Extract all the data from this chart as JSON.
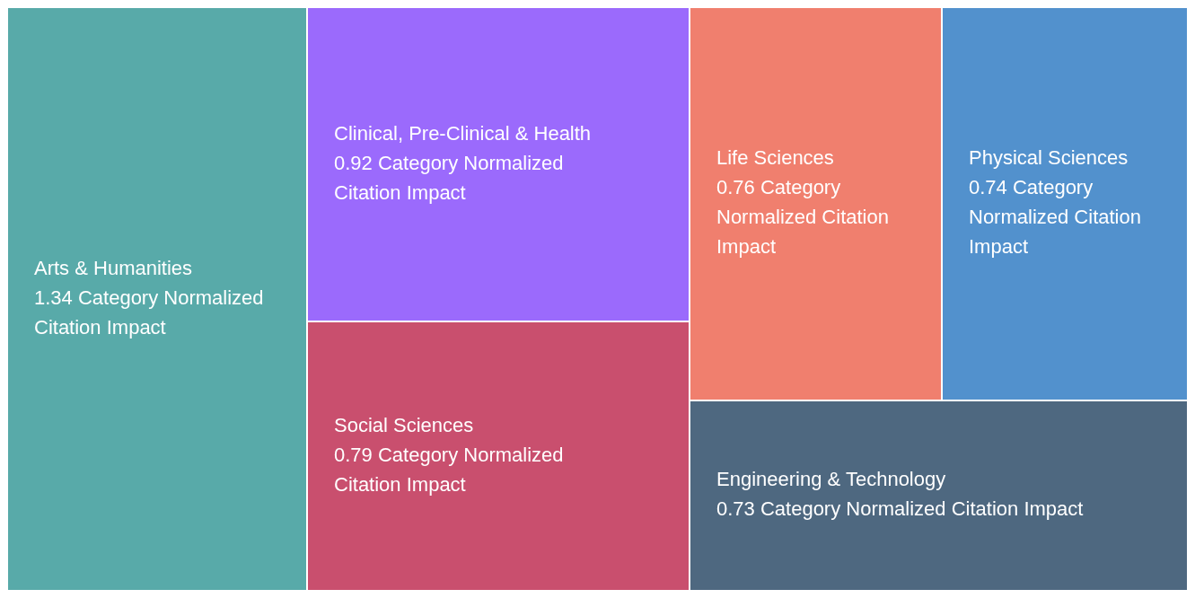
{
  "chart_data": {
    "type": "other",
    "categories": [
      "Arts & Humanities",
      "Clinical, Pre-Clinical & Health",
      "Social Sciences",
      "Life Sciences",
      "Physical Sciences",
      "Engineering & Technology"
    ],
    "values": [
      1.34,
      0.92,
      0.79,
      0.76,
      0.74,
      0.73
    ],
    "colors": [
      "#58aaa9",
      "#9b6afc",
      "#c94f6e",
      "#f07f6e",
      "#5291cd",
      "#4e6880"
    ],
    "value_labels": [
      "1.34 Category Normalized Citation Impact",
      "0.92 Category Normalized Citation Impact",
      "0.79 Category Normalized Citation Impact",
      "0.76 Category Normalized Citation Impact",
      "0.74 Category Normalized Citation Impact",
      "0.73 Category Normalized Citation Impact"
    ]
  }
}
